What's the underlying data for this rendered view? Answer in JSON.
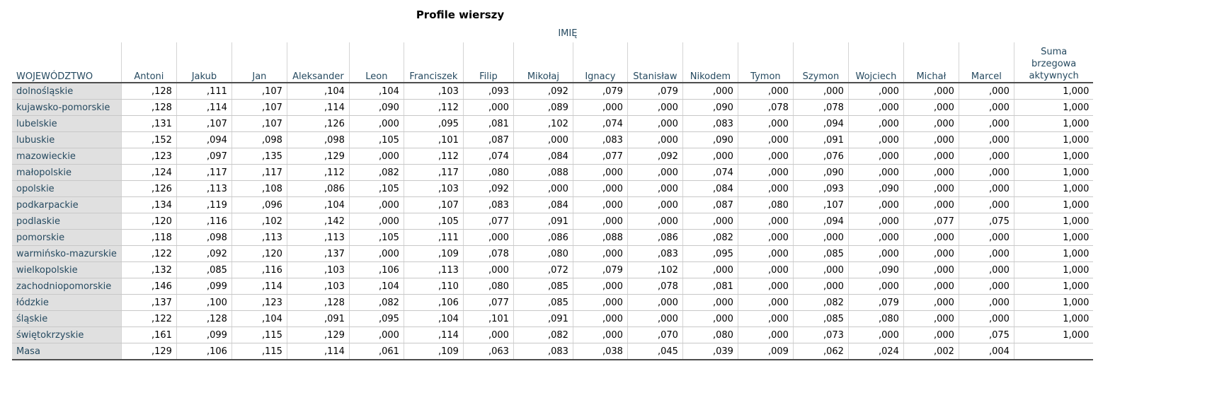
{
  "title": "Profile wierszy",
  "group_label": "IMIĘ",
  "row_header": "WOJEWÓDZTWO",
  "columns": [
    "Antoni",
    "Jakub",
    "Jan",
    "Aleksander",
    "Leon",
    "Franciszek",
    "Filip",
    "Mikołaj",
    "Ignacy",
    "Stanisław",
    "Nikodem",
    "Tymon",
    "Szymon",
    "Wojciech",
    "Michał",
    "Marcel"
  ],
  "total_column": "Suma brzegowa aktywnych",
  "rows": [
    {
      "label": "dolnośląskie",
      "values": [
        ",128",
        ",111",
        ",107",
        ",104",
        ",104",
        ",103",
        ",093",
        ",092",
        ",079",
        ",079",
        ",000",
        ",000",
        ",000",
        ",000",
        ",000",
        ",000",
        "1,000"
      ]
    },
    {
      "label": "kujawsko-pomorskie",
      "values": [
        ",128",
        ",114",
        ",107",
        ",114",
        ",090",
        ",112",
        ",000",
        ",089",
        ",000",
        ",000",
        ",090",
        ",078",
        ",078",
        ",000",
        ",000",
        ",000",
        "1,000"
      ]
    },
    {
      "label": "lubelskie",
      "values": [
        ",131",
        ",107",
        ",107",
        ",126",
        ",000",
        ",095",
        ",081",
        ",102",
        ",074",
        ",000",
        ",083",
        ",000",
        ",094",
        ",000",
        ",000",
        ",000",
        "1,000"
      ]
    },
    {
      "label": "lubuskie",
      "values": [
        ",152",
        ",094",
        ",098",
        ",098",
        ",105",
        ",101",
        ",087",
        ",000",
        ",083",
        ",000",
        ",090",
        ",000",
        ",091",
        ",000",
        ",000",
        ",000",
        "1,000"
      ]
    },
    {
      "label": "mazowieckie",
      "values": [
        ",123",
        ",097",
        ",135",
        ",129",
        ",000",
        ",112",
        ",074",
        ",084",
        ",077",
        ",092",
        ",000",
        ",000",
        ",076",
        ",000",
        ",000",
        ",000",
        "1,000"
      ]
    },
    {
      "label": "małopolskie",
      "values": [
        ",124",
        ",117",
        ",117",
        ",112",
        ",082",
        ",117",
        ",080",
        ",088",
        ",000",
        ",000",
        ",074",
        ",000",
        ",090",
        ",000",
        ",000",
        ",000",
        "1,000"
      ]
    },
    {
      "label": "opolskie",
      "values": [
        ",126",
        ",113",
        ",108",
        ",086",
        ",105",
        ",103",
        ",092",
        ",000",
        ",000",
        ",000",
        ",084",
        ",000",
        ",093",
        ",090",
        ",000",
        ",000",
        "1,000"
      ]
    },
    {
      "label": "podkarpackie",
      "values": [
        ",134",
        ",119",
        ",096",
        ",104",
        ",000",
        ",107",
        ",083",
        ",084",
        ",000",
        ",000",
        ",087",
        ",080",
        ",107",
        ",000",
        ",000",
        ",000",
        "1,000"
      ]
    },
    {
      "label": "podlaskie",
      "values": [
        ",120",
        ",116",
        ",102",
        ",142",
        ",000",
        ",105",
        ",077",
        ",091",
        ",000",
        ",000",
        ",000",
        ",000",
        ",094",
        ",000",
        ",077",
        ",075",
        "1,000"
      ]
    },
    {
      "label": "pomorskie",
      "values": [
        ",118",
        ",098",
        ",113",
        ",113",
        ",105",
        ",111",
        ",000",
        ",086",
        ",088",
        ",086",
        ",082",
        ",000",
        ",000",
        ",000",
        ",000",
        ",000",
        "1,000"
      ]
    },
    {
      "label": "warmińsko-mazurskie",
      "values": [
        ",122",
        ",092",
        ",120",
        ",137",
        ",000",
        ",109",
        ",078",
        ",080",
        ",000",
        ",083",
        ",095",
        ",000",
        ",085",
        ",000",
        ",000",
        ",000",
        "1,000"
      ]
    },
    {
      "label": "wielkopolskie",
      "values": [
        ",132",
        ",085",
        ",116",
        ",103",
        ",106",
        ",113",
        ",000",
        ",072",
        ",079",
        ",102",
        ",000",
        ",000",
        ",000",
        ",090",
        ",000",
        ",000",
        "1,000"
      ]
    },
    {
      "label": "zachodniopomorskie",
      "values": [
        ",146",
        ",099",
        ",114",
        ",103",
        ",104",
        ",110",
        ",080",
        ",085",
        ",000",
        ",078",
        ",081",
        ",000",
        ",000",
        ",000",
        ",000",
        ",000",
        "1,000"
      ]
    },
    {
      "label": "łódzkie",
      "values": [
        ",137",
        ",100",
        ",123",
        ",128",
        ",082",
        ",106",
        ",077",
        ",085",
        ",000",
        ",000",
        ",000",
        ",000",
        ",082",
        ",079",
        ",000",
        ",000",
        "1,000"
      ]
    },
    {
      "label": "śląskie",
      "values": [
        ",122",
        ",128",
        ",104",
        ",091",
        ",095",
        ",104",
        ",101",
        ",091",
        ",000",
        ",000",
        ",000",
        ",000",
        ",085",
        ",080",
        ",000",
        ",000",
        "1,000"
      ]
    },
    {
      "label": "świętokrzyskie",
      "values": [
        ",161",
        ",099",
        ",115",
        ",129",
        ",000",
        ",114",
        ",000",
        ",082",
        ",000",
        ",070",
        ",080",
        ",000",
        ",073",
        ",000",
        ",000",
        ",075",
        "1,000"
      ]
    },
    {
      "label": "Masa",
      "values": [
        ",129",
        ",106",
        ",115",
        ",114",
        ",061",
        ",109",
        ",063",
        ",083",
        ",038",
        ",045",
        ",039",
        ",009",
        ",062",
        ",024",
        ",002",
        ",004",
        ""
      ]
    }
  ]
}
